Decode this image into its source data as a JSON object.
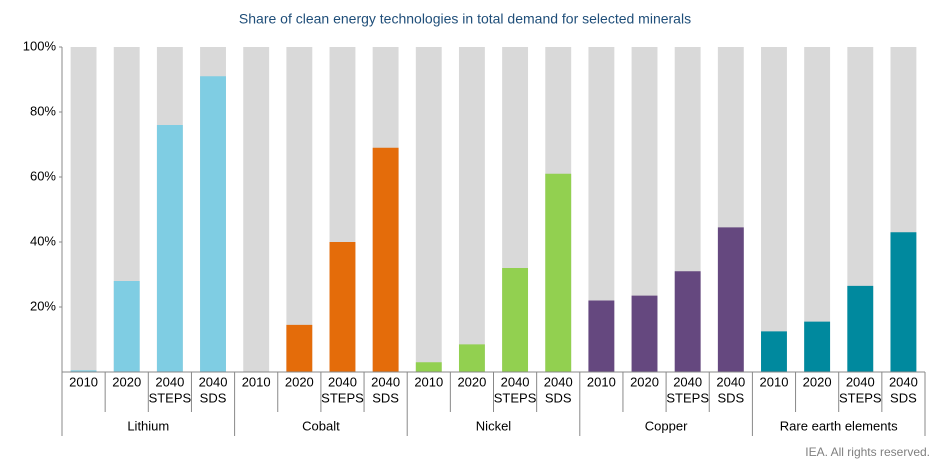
{
  "chart_data": {
    "type": "bar",
    "title": "Share of clean energy technologies in total demand for selected minerals",
    "categories": [
      [
        "2010"
      ],
      [
        "2020"
      ],
      [
        "2040",
        "STEPS"
      ],
      [
        "2040",
        "SDS"
      ]
    ],
    "series": [
      {
        "name": "Lithium",
        "color": "#7fcde3",
        "values": [
          0.5,
          28,
          76,
          91
        ]
      },
      {
        "name": "Cobalt",
        "color": "#e46c0a",
        "values": [
          0,
          14.5,
          40,
          69
        ]
      },
      {
        "name": "Nickel",
        "color": "#92d050",
        "values": [
          3,
          8.5,
          32,
          61
        ]
      },
      {
        "name": "Copper",
        "color": "#65487f",
        "values": [
          22,
          23.5,
          31,
          44.5
        ]
      },
      {
        "name": "Rare earth elements",
        "color": "#00899e",
        "values": [
          12.5,
          15.5,
          26.5,
          43
        ]
      }
    ],
    "background_color": "#d9d9d9",
    "ylim": [
      0,
      100
    ],
    "yticks": [
      {
        "value": 20,
        "label": "20%"
      },
      {
        "value": 40,
        "label": "40%"
      },
      {
        "value": 60,
        "label": "60%"
      },
      {
        "value": 80,
        "label": "80%"
      },
      {
        "value": 100,
        "label": "100%"
      }
    ],
    "footer": "IEA. All rights reserved."
  }
}
